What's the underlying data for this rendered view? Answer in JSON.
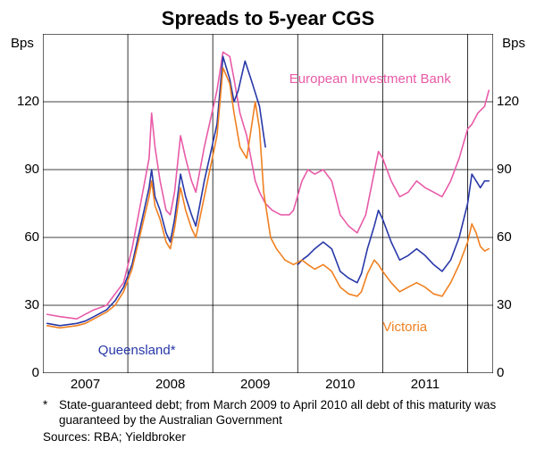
{
  "chart": {
    "type": "line",
    "title": "Spreads to 5-year CGS",
    "title_fontsize": 22,
    "title_weight": "bold",
    "background_color": "#ffffff",
    "axis_color": "#000000",
    "grid_color": "#000000",
    "y_unit_left": "Bps",
    "y_unit_right": "Bps",
    "ylim": [
      0,
      150
    ],
    "yticks": [
      0,
      30,
      60,
      90,
      120
    ],
    "xlim": [
      2006.5,
      2011.8
    ],
    "xticks": [
      2007,
      2008,
      2009,
      2010,
      2011
    ],
    "line_width": 1.6,
    "label_fontsize": 15,
    "tick_fontsize": 15,
    "series": [
      {
        "name": "European Investment Bank",
        "color": "#e85ba8",
        "label_color": "#e85ba8",
        "label_x": 2009.4,
        "label_y": 130,
        "data": [
          [
            2006.55,
            26
          ],
          [
            2006.7,
            25
          ],
          [
            2006.9,
            24
          ],
          [
            2007.0,
            26
          ],
          [
            2007.1,
            28
          ],
          [
            2007.25,
            30
          ],
          [
            2007.35,
            35
          ],
          [
            2007.45,
            40
          ],
          [
            2007.55,
            55
          ],
          [
            2007.65,
            75
          ],
          [
            2007.75,
            95
          ],
          [
            2007.78,
            115
          ],
          [
            2007.82,
            100
          ],
          [
            2007.88,
            85
          ],
          [
            2007.95,
            72
          ],
          [
            2008.0,
            70
          ],
          [
            2008.05,
            80
          ],
          [
            2008.12,
            105
          ],
          [
            2008.18,
            95
          ],
          [
            2008.25,
            85
          ],
          [
            2008.3,
            80
          ],
          [
            2008.4,
            100
          ],
          [
            2008.55,
            125
          ],
          [
            2008.62,
            142
          ],
          [
            2008.7,
            140
          ],
          [
            2008.75,
            130
          ],
          [
            2008.82,
            115
          ],
          [
            2008.9,
            105
          ],
          [
            2009.0,
            85
          ],
          [
            2009.05,
            80
          ],
          [
            2009.12,
            75
          ],
          [
            2009.2,
            72
          ],
          [
            2009.3,
            70
          ],
          [
            2009.4,
            70
          ],
          [
            2009.45,
            72
          ],
          [
            2009.55,
            85
          ],
          [
            2009.62,
            90
          ],
          [
            2009.7,
            88
          ],
          [
            2009.8,
            90
          ],
          [
            2009.9,
            85
          ],
          [
            2010.0,
            70
          ],
          [
            2010.1,
            65
          ],
          [
            2010.2,
            62
          ],
          [
            2010.3,
            70
          ],
          [
            2010.38,
            85
          ],
          [
            2010.45,
            98
          ],
          [
            2010.5,
            95
          ],
          [
            2010.6,
            85
          ],
          [
            2010.7,
            78
          ],
          [
            2010.8,
            80
          ],
          [
            2010.9,
            85
          ],
          [
            2011.0,
            82
          ],
          [
            2011.1,
            80
          ],
          [
            2011.2,
            78
          ],
          [
            2011.3,
            85
          ],
          [
            2011.4,
            95
          ],
          [
            2011.5,
            108
          ],
          [
            2011.55,
            110
          ],
          [
            2011.62,
            115
          ],
          [
            2011.7,
            118
          ],
          [
            2011.75,
            125
          ]
        ]
      },
      {
        "name": "Queensland*",
        "color": "#2838a8",
        "label_color": "#2838a8",
        "label_x": 2007.15,
        "label_y": 10,
        "data": [
          [
            2006.55,
            22
          ],
          [
            2006.7,
            21
          ],
          [
            2006.9,
            22
          ],
          [
            2007.0,
            23
          ],
          [
            2007.1,
            25
          ],
          [
            2007.25,
            28
          ],
          [
            2007.35,
            32
          ],
          [
            2007.45,
            38
          ],
          [
            2007.55,
            48
          ],
          [
            2007.65,
            65
          ],
          [
            2007.75,
            82
          ],
          [
            2007.78,
            90
          ],
          [
            2007.82,
            78
          ],
          [
            2007.88,
            72
          ],
          [
            2007.95,
            62
          ],
          [
            2008.0,
            58
          ],
          [
            2008.05,
            68
          ],
          [
            2008.12,
            88
          ],
          [
            2008.18,
            78
          ],
          [
            2008.25,
            70
          ],
          [
            2008.3,
            65
          ],
          [
            2008.4,
            85
          ],
          [
            2008.55,
            110
          ],
          [
            2008.62,
            140
          ],
          [
            2008.7,
            130
          ],
          [
            2008.75,
            120
          ],
          [
            2008.8,
            125
          ],
          [
            2008.88,
            138
          ],
          [
            2008.95,
            130
          ],
          [
            2009.05,
            118
          ],
          [
            2009.1,
            105
          ],
          [
            2009.12,
            100
          ],
          [
            2009.5,
            48
          ],
          [
            2009.55,
            50
          ],
          [
            2009.62,
            52
          ],
          [
            2009.7,
            55
          ],
          [
            2009.8,
            58
          ],
          [
            2009.9,
            55
          ],
          [
            2010.0,
            45
          ],
          [
            2010.1,
            42
          ],
          [
            2010.2,
            40
          ],
          [
            2010.25,
            44
          ],
          [
            2010.32,
            55
          ],
          [
            2010.4,
            65
          ],
          [
            2010.45,
            72
          ],
          [
            2010.5,
            68
          ],
          [
            2010.6,
            58
          ],
          [
            2010.7,
            50
          ],
          [
            2010.8,
            52
          ],
          [
            2010.9,
            55
          ],
          [
            2011.0,
            52
          ],
          [
            2011.1,
            48
          ],
          [
            2011.2,
            45
          ],
          [
            2011.3,
            50
          ],
          [
            2011.4,
            60
          ],
          [
            2011.5,
            75
          ],
          [
            2011.55,
            88
          ],
          [
            2011.6,
            85
          ],
          [
            2011.65,
            82
          ],
          [
            2011.7,
            85
          ],
          [
            2011.75,
            85
          ]
        ],
        "gap_after": 2009.12
      },
      {
        "name": "Victoria",
        "color": "#f08020",
        "label_color": "#f08020",
        "label_x": 2010.5,
        "label_y": 20,
        "data": [
          [
            2006.55,
            21
          ],
          [
            2006.7,
            20
          ],
          [
            2006.9,
            21
          ],
          [
            2007.0,
            22
          ],
          [
            2007.1,
            24
          ],
          [
            2007.25,
            27
          ],
          [
            2007.35,
            30
          ],
          [
            2007.45,
            36
          ],
          [
            2007.55,
            46
          ],
          [
            2007.65,
            62
          ],
          [
            2007.75,
            78
          ],
          [
            2007.78,
            85
          ],
          [
            2007.82,
            74
          ],
          [
            2007.88,
            68
          ],
          [
            2007.95,
            58
          ],
          [
            2008.0,
            55
          ],
          [
            2008.05,
            64
          ],
          [
            2008.12,
            82
          ],
          [
            2008.18,
            72
          ],
          [
            2008.25,
            64
          ],
          [
            2008.3,
            60
          ],
          [
            2008.4,
            78
          ],
          [
            2008.55,
            105
          ],
          [
            2008.62,
            135
          ],
          [
            2008.7,
            128
          ],
          [
            2008.75,
            115
          ],
          [
            2008.82,
            100
          ],
          [
            2008.9,
            95
          ],
          [
            2009.0,
            120
          ],
          [
            2009.05,
            108
          ],
          [
            2009.1,
            80
          ],
          [
            2009.18,
            60
          ],
          [
            2009.25,
            55
          ],
          [
            2009.35,
            50
          ],
          [
            2009.45,
            48
          ],
          [
            2009.55,
            50
          ],
          [
            2009.62,
            48
          ],
          [
            2009.7,
            46
          ],
          [
            2009.8,
            48
          ],
          [
            2009.9,
            45
          ],
          [
            2010.0,
            38
          ],
          [
            2010.1,
            35
          ],
          [
            2010.2,
            34
          ],
          [
            2010.25,
            36
          ],
          [
            2010.32,
            44
          ],
          [
            2010.4,
            50
          ],
          [
            2010.45,
            48
          ],
          [
            2010.5,
            45
          ],
          [
            2010.6,
            40
          ],
          [
            2010.7,
            36
          ],
          [
            2010.8,
            38
          ],
          [
            2010.9,
            40
          ],
          [
            2011.0,
            38
          ],
          [
            2011.1,
            35
          ],
          [
            2011.2,
            34
          ],
          [
            2011.3,
            40
          ],
          [
            2011.4,
            48
          ],
          [
            2011.5,
            58
          ],
          [
            2011.55,
            66
          ],
          [
            2011.6,
            62
          ],
          [
            2011.65,
            56
          ],
          [
            2011.7,
            54
          ],
          [
            2011.75,
            55
          ]
        ]
      }
    ],
    "footnote_marker": "*",
    "footnote": "State-guaranteed debt; from March 2009 to April 2010 all debt of this maturity was guaranteed by the Australian Government",
    "sources_label": "Sources:",
    "sources": "RBA; Yieldbroker"
  }
}
